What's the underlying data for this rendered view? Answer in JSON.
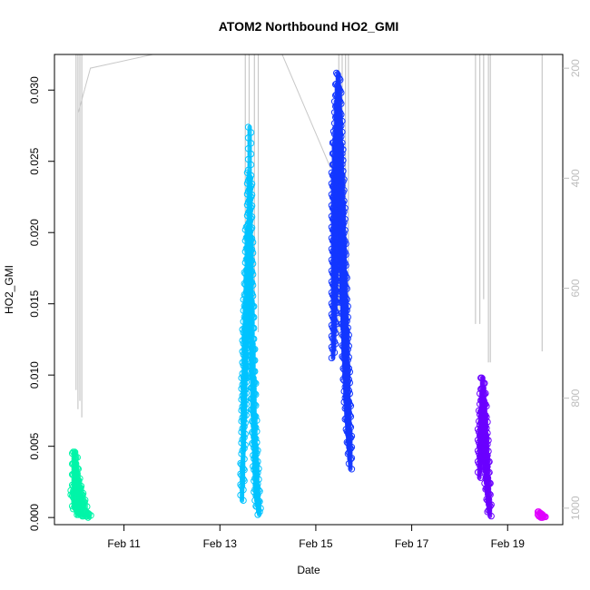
{
  "chart_data": {
    "type": "scatter",
    "title": "ATOM2 Northbound HO2_GMI",
    "xlabel": "Date",
    "ylabel": "HO2_GMI",
    "x_ticks": [
      "Feb 11",
      "Feb 13",
      "Feb 15",
      "Feb 17",
      "Feb 19"
    ],
    "x_tick_days": [
      11,
      13,
      15,
      17,
      19
    ],
    "xlim_days": [
      9.55,
      20.15
    ],
    "y_ticks": [
      "0.000",
      "0.005",
      "0.010",
      "0.015",
      "0.020",
      "0.025",
      "0.030"
    ],
    "y_tick_values": [
      0.0,
      0.005,
      0.01,
      0.015,
      0.02,
      0.025,
      0.03
    ],
    "ylim": [
      -0.0005,
      0.0325
    ],
    "right_axis": {
      "ticks": [
        "200",
        "400",
        "600",
        "800",
        "1000"
      ],
      "tick_values": [
        200,
        400,
        600,
        800,
        1000
      ],
      "range": [
        175,
        1030
      ],
      "color": "#bdbdbd",
      "inverted": true
    },
    "grid": false,
    "series": [
      {
        "color": "#00f5a8",
        "days": [
          9.9,
          10.3
        ],
        "segments": [
          {
            "x": [
              9.92,
              9.95,
              9.97,
              10.0,
              10.02,
              10.05,
              10.08,
              10.12,
              10.16,
              10.2,
              10.24,
              10.28
            ],
            "min": [
              0.0016,
              0.0008,
              0.0006,
              0.0004,
              0.0003,
              0.0002,
              0.0002,
              0.0001,
              0.0001,
              0.0001,
              0.0001,
              0.0
            ],
            "max": [
              0.0019,
              0.0045,
              0.0046,
              0.0046,
              0.0038,
              0.0031,
              0.0026,
              0.0021,
              0.0016,
              0.0011,
              0.0004,
              0.0003
            ]
          }
        ]
      },
      {
        "color": "#00c3ff",
        "days": [
          13.45,
          13.82
        ],
        "segments": [
          {
            "x": [
              13.46,
              13.48,
              13.5,
              13.52,
              13.54,
              13.56,
              13.58,
              13.6,
              13.62,
              13.64,
              13.66,
              13.68,
              13.7,
              13.72,
              13.74,
              13.76,
              13.78,
              13.8,
              13.82
            ],
            "min": [
              0.0012,
              0.0022,
              0.0047,
              0.0068,
              0.0098,
              0.0121,
              0.0128,
              0.0148,
              0.0161,
              0.0138,
              0.0099,
              0.0072,
              0.0052,
              0.0032,
              0.0018,
              0.0012,
              0.0008,
              0.0004,
              0.0002
            ],
            "max": [
              0.0038,
              0.0098,
              0.0132,
              0.0153,
              0.0172,
              0.0202,
              0.0204,
              0.0242,
              0.0274,
              0.0238,
              0.0197,
              0.0152,
              0.0122,
              0.0098,
              0.0072,
              0.0051,
              0.0038,
              0.0022,
              0.0011
            ]
          }
        ]
      },
      {
        "color": "#1337ff",
        "days": [
          15.35,
          15.75
        ],
        "segments": [
          {
            "x": [
              15.36,
              15.38,
              15.4,
              15.42,
              15.44,
              15.46,
              15.48,
              15.5,
              15.52,
              15.54,
              15.56,
              15.58,
              15.6,
              15.62,
              15.64,
              15.66,
              15.68,
              15.7,
              15.72
            ],
            "min": [
              0.0112,
              0.0118,
              0.0132,
              0.0151,
              0.0173,
              0.0201,
              0.0219,
              0.0202,
              0.0176,
              0.0153,
              0.0132,
              0.0113,
              0.0097,
              0.0081,
              0.0069,
              0.0058,
              0.0049,
              0.0041,
              0.0034
            ],
            "max": [
              0.0242,
              0.0263,
              0.0271,
              0.0292,
              0.0304,
              0.0312,
              0.0311,
              0.0302,
              0.0282,
              0.0262,
              0.0241,
              0.0221,
              0.0196,
              0.0172,
              0.0152,
              0.0132,
              0.0106,
              0.0082,
              0.0061
            ]
          }
        ]
      },
      {
        "color": "#6a00ff",
        "days": [
          18.4,
          18.65
        ],
        "segments": [
          {
            "x": [
              18.41,
              18.43,
              18.45,
              18.47,
              18.49,
              18.51,
              18.53,
              18.55,
              18.57,
              18.59,
              18.61,
              18.63
            ],
            "min": [
              0.0028,
              0.0034,
              0.0039,
              0.0047,
              0.0049,
              0.0041,
              0.0032,
              0.0024,
              0.0016,
              0.0009,
              0.0004,
              0.0001
            ],
            "max": [
              0.0062,
              0.0075,
              0.0087,
              0.0098,
              0.0098,
              0.0091,
              0.0082,
              0.0071,
              0.0058,
              0.0043,
              0.0028,
              0.0013
            ]
          }
        ]
      },
      {
        "color": "#e000ff",
        "days": [
          19.65,
          19.8
        ],
        "segments": [
          {
            "x": [
              19.66,
              19.68,
              19.7,
              19.72,
              19.74,
              19.76
            ],
            "min": [
              0.0002,
              0.0001,
              0.0001,
              0.0,
              0.0,
              0.0
            ],
            "max": [
              0.0004,
              0.0004,
              0.0003,
              0.0002,
              0.0001,
              0.0001
            ]
          }
        ]
      }
    ],
    "pressure_profile": {
      "color": "#c8c8c8",
      "polyline": [
        [
          10.05,
          280
        ],
        [
          10.3,
          200
        ],
        [
          11.6,
          175
        ],
        [
          14.3,
          175
        ],
        [
          15.3,
          380
        ],
        [
          15.45,
          350
        ]
      ],
      "spikes": [
        {
          "day": 10.0,
          "p": 785
        },
        {
          "day": 10.04,
          "p": 820
        },
        {
          "day": 10.08,
          "p": 805
        },
        {
          "day": 10.12,
          "p": 835
        },
        {
          "day": 13.53,
          "p": 650
        },
        {
          "day": 13.61,
          "p": 700
        },
        {
          "day": 13.72,
          "p": 620
        },
        {
          "day": 13.8,
          "p": 680
        },
        {
          "day": 15.48,
          "p": 690
        },
        {
          "day": 15.55,
          "p": 720
        },
        {
          "day": 15.62,
          "p": 660
        },
        {
          "day": 15.68,
          "p": 700
        },
        {
          "day": 18.33,
          "p": 665
        },
        {
          "day": 18.42,
          "p": 665
        },
        {
          "day": 18.5,
          "p": 620
        },
        {
          "day": 18.6,
          "p": 735
        },
        {
          "day": 18.64,
          "p": 735
        },
        {
          "day": 19.72,
          "p": 715
        }
      ]
    }
  }
}
